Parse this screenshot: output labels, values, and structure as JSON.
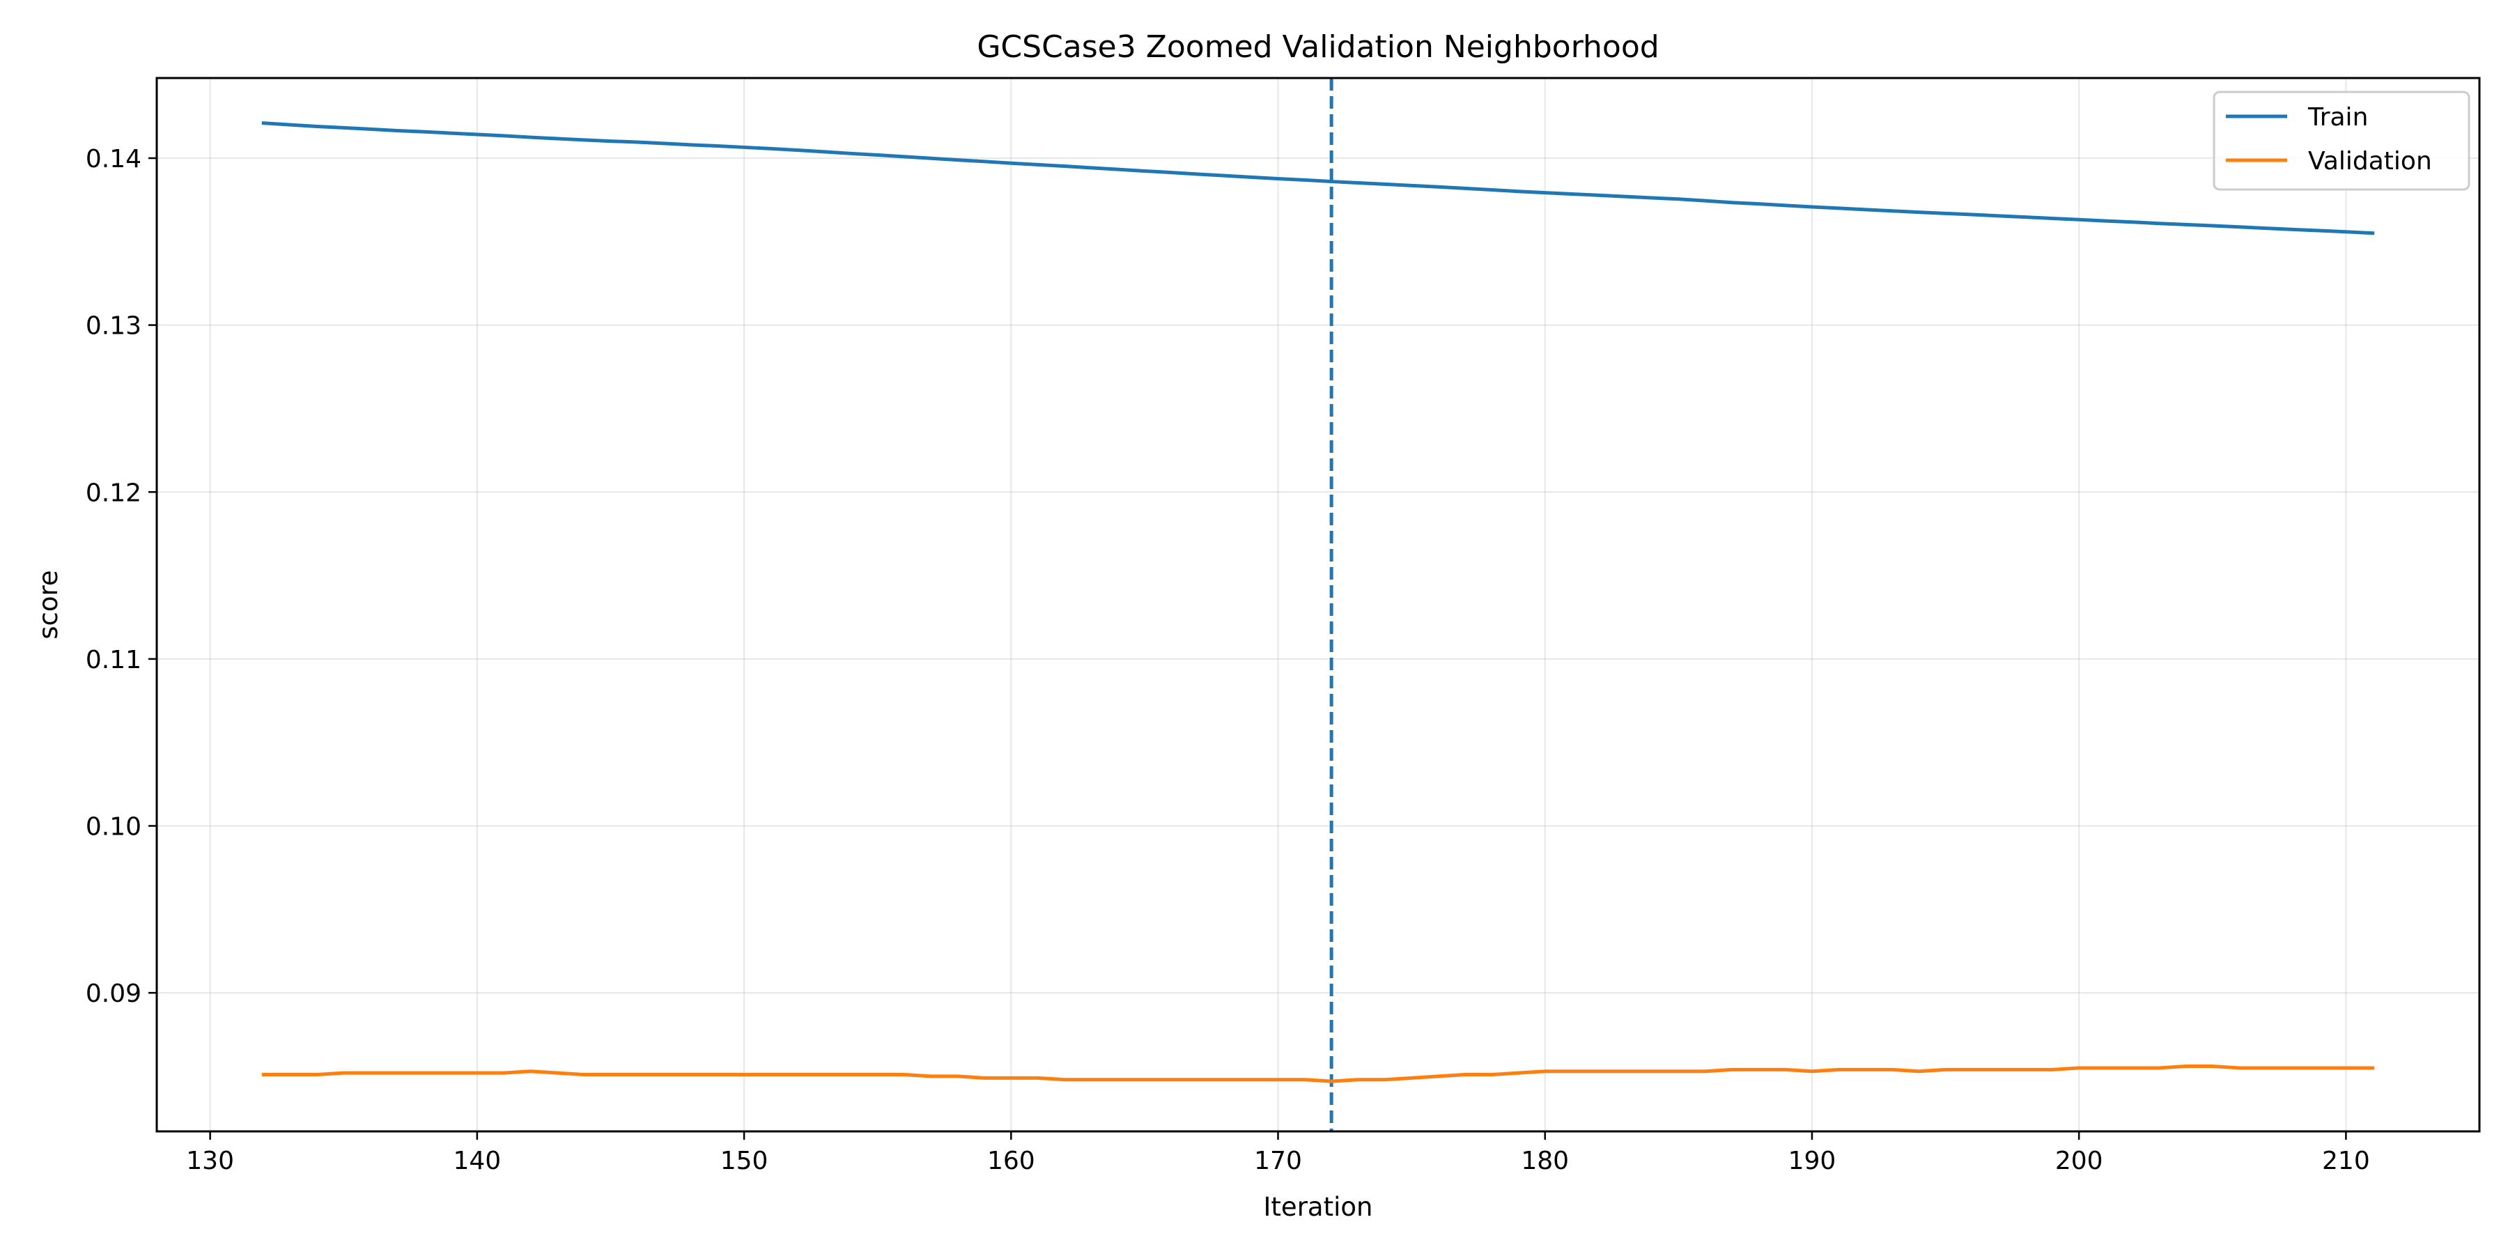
{
  "chart_data": {
    "type": "line",
    "title": "GCSCase3 Zoomed Validation Neighborhood",
    "xlabel": "Iteration",
    "ylabel": "score",
    "xlim": [
      128,
      215
    ],
    "ylim": [
      0.0817,
      0.1448
    ],
    "xticks": [
      130,
      140,
      150,
      160,
      170,
      180,
      190,
      200,
      210
    ],
    "xtick_labels": [
      "130",
      "140",
      "150",
      "160",
      "170",
      "180",
      "190",
      "200",
      "210"
    ],
    "yticks": [
      0.09,
      0.1,
      0.11,
      0.12,
      0.13,
      0.14
    ],
    "ytick_labels": [
      "0.09",
      "0.10",
      "0.11",
      "0.12",
      "0.13",
      "0.14"
    ],
    "grid": true,
    "legend_position": "top-right",
    "vline": {
      "x": 172,
      "color": "#1f77b4",
      "style": "dashed"
    },
    "x": [
      132,
      133,
      134,
      135,
      136,
      137,
      138,
      139,
      140,
      141,
      142,
      143,
      144,
      145,
      146,
      147,
      148,
      149,
      150,
      151,
      152,
      153,
      154,
      155,
      156,
      157,
      158,
      159,
      160,
      161,
      162,
      163,
      164,
      165,
      166,
      167,
      168,
      169,
      170,
      171,
      172,
      173,
      174,
      175,
      176,
      177,
      178,
      179,
      180,
      181,
      182,
      183,
      184,
      185,
      186,
      187,
      188,
      189,
      190,
      191,
      192,
      193,
      194,
      195,
      196,
      197,
      198,
      199,
      200,
      201,
      202,
      203,
      204,
      205,
      206,
      207,
      208,
      209,
      210,
      211
    ],
    "series": [
      {
        "name": "Train",
        "color": "#1f77b4",
        "values": [
          0.1421,
          0.142,
          0.1419,
          0.14182,
          0.14174,
          0.14165,
          0.14158,
          0.1415,
          0.14142,
          0.14134,
          0.14125,
          0.14117,
          0.14109,
          0.14102,
          0.14096,
          0.14088,
          0.1408,
          0.14073,
          0.14065,
          0.14057,
          0.14048,
          0.14038,
          0.14028,
          0.14019,
          0.14009,
          0.13999,
          0.13989,
          0.1398,
          0.1397,
          0.13961,
          0.13952,
          0.13942,
          0.13933,
          0.13923,
          0.13914,
          0.13904,
          0.13895,
          0.13886,
          0.13877,
          0.13869,
          0.1386,
          0.13852,
          0.13844,
          0.13836,
          0.13828,
          0.13819,
          0.1381,
          0.13801,
          0.13793,
          0.13785,
          0.13778,
          0.1377,
          0.13762,
          0.13755,
          0.13745,
          0.13734,
          0.13726,
          0.13717,
          0.13708,
          0.137,
          0.13692,
          0.13684,
          0.13676,
          0.13669,
          0.13662,
          0.13654,
          0.13647,
          0.13639,
          0.13632,
          0.13624,
          0.13617,
          0.13609,
          0.13602,
          0.13595,
          0.13588,
          0.1358,
          0.13573,
          0.13566,
          0.13559,
          0.13551
        ]
      },
      {
        "name": "Validation",
        "color": "#ff7f0e",
        "values": [
          0.0851,
          0.0851,
          0.0851,
          0.0852,
          0.0852,
          0.0852,
          0.0852,
          0.0852,
          0.0852,
          0.0852,
          0.0853,
          0.0852,
          0.0851,
          0.0851,
          0.0851,
          0.0851,
          0.0851,
          0.0851,
          0.0851,
          0.0851,
          0.0851,
          0.0851,
          0.0851,
          0.0851,
          0.0851,
          0.085,
          0.085,
          0.0849,
          0.0849,
          0.0849,
          0.0848,
          0.0848,
          0.0848,
          0.0848,
          0.0848,
          0.0848,
          0.0848,
          0.0848,
          0.0848,
          0.0848,
          0.0847,
          0.0848,
          0.0848,
          0.0849,
          0.085,
          0.0851,
          0.0851,
          0.0852,
          0.0853,
          0.0853,
          0.0853,
          0.0853,
          0.0853,
          0.0853,
          0.0853,
          0.0854,
          0.0854,
          0.0854,
          0.0853,
          0.0854,
          0.0854,
          0.0854,
          0.0853,
          0.0854,
          0.0854,
          0.0854,
          0.0854,
          0.0854,
          0.0855,
          0.0855,
          0.0855,
          0.0855,
          0.0856,
          0.0856,
          0.0855,
          0.0855,
          0.0855,
          0.0855,
          0.0855,
          0.0855
        ]
      }
    ]
  }
}
